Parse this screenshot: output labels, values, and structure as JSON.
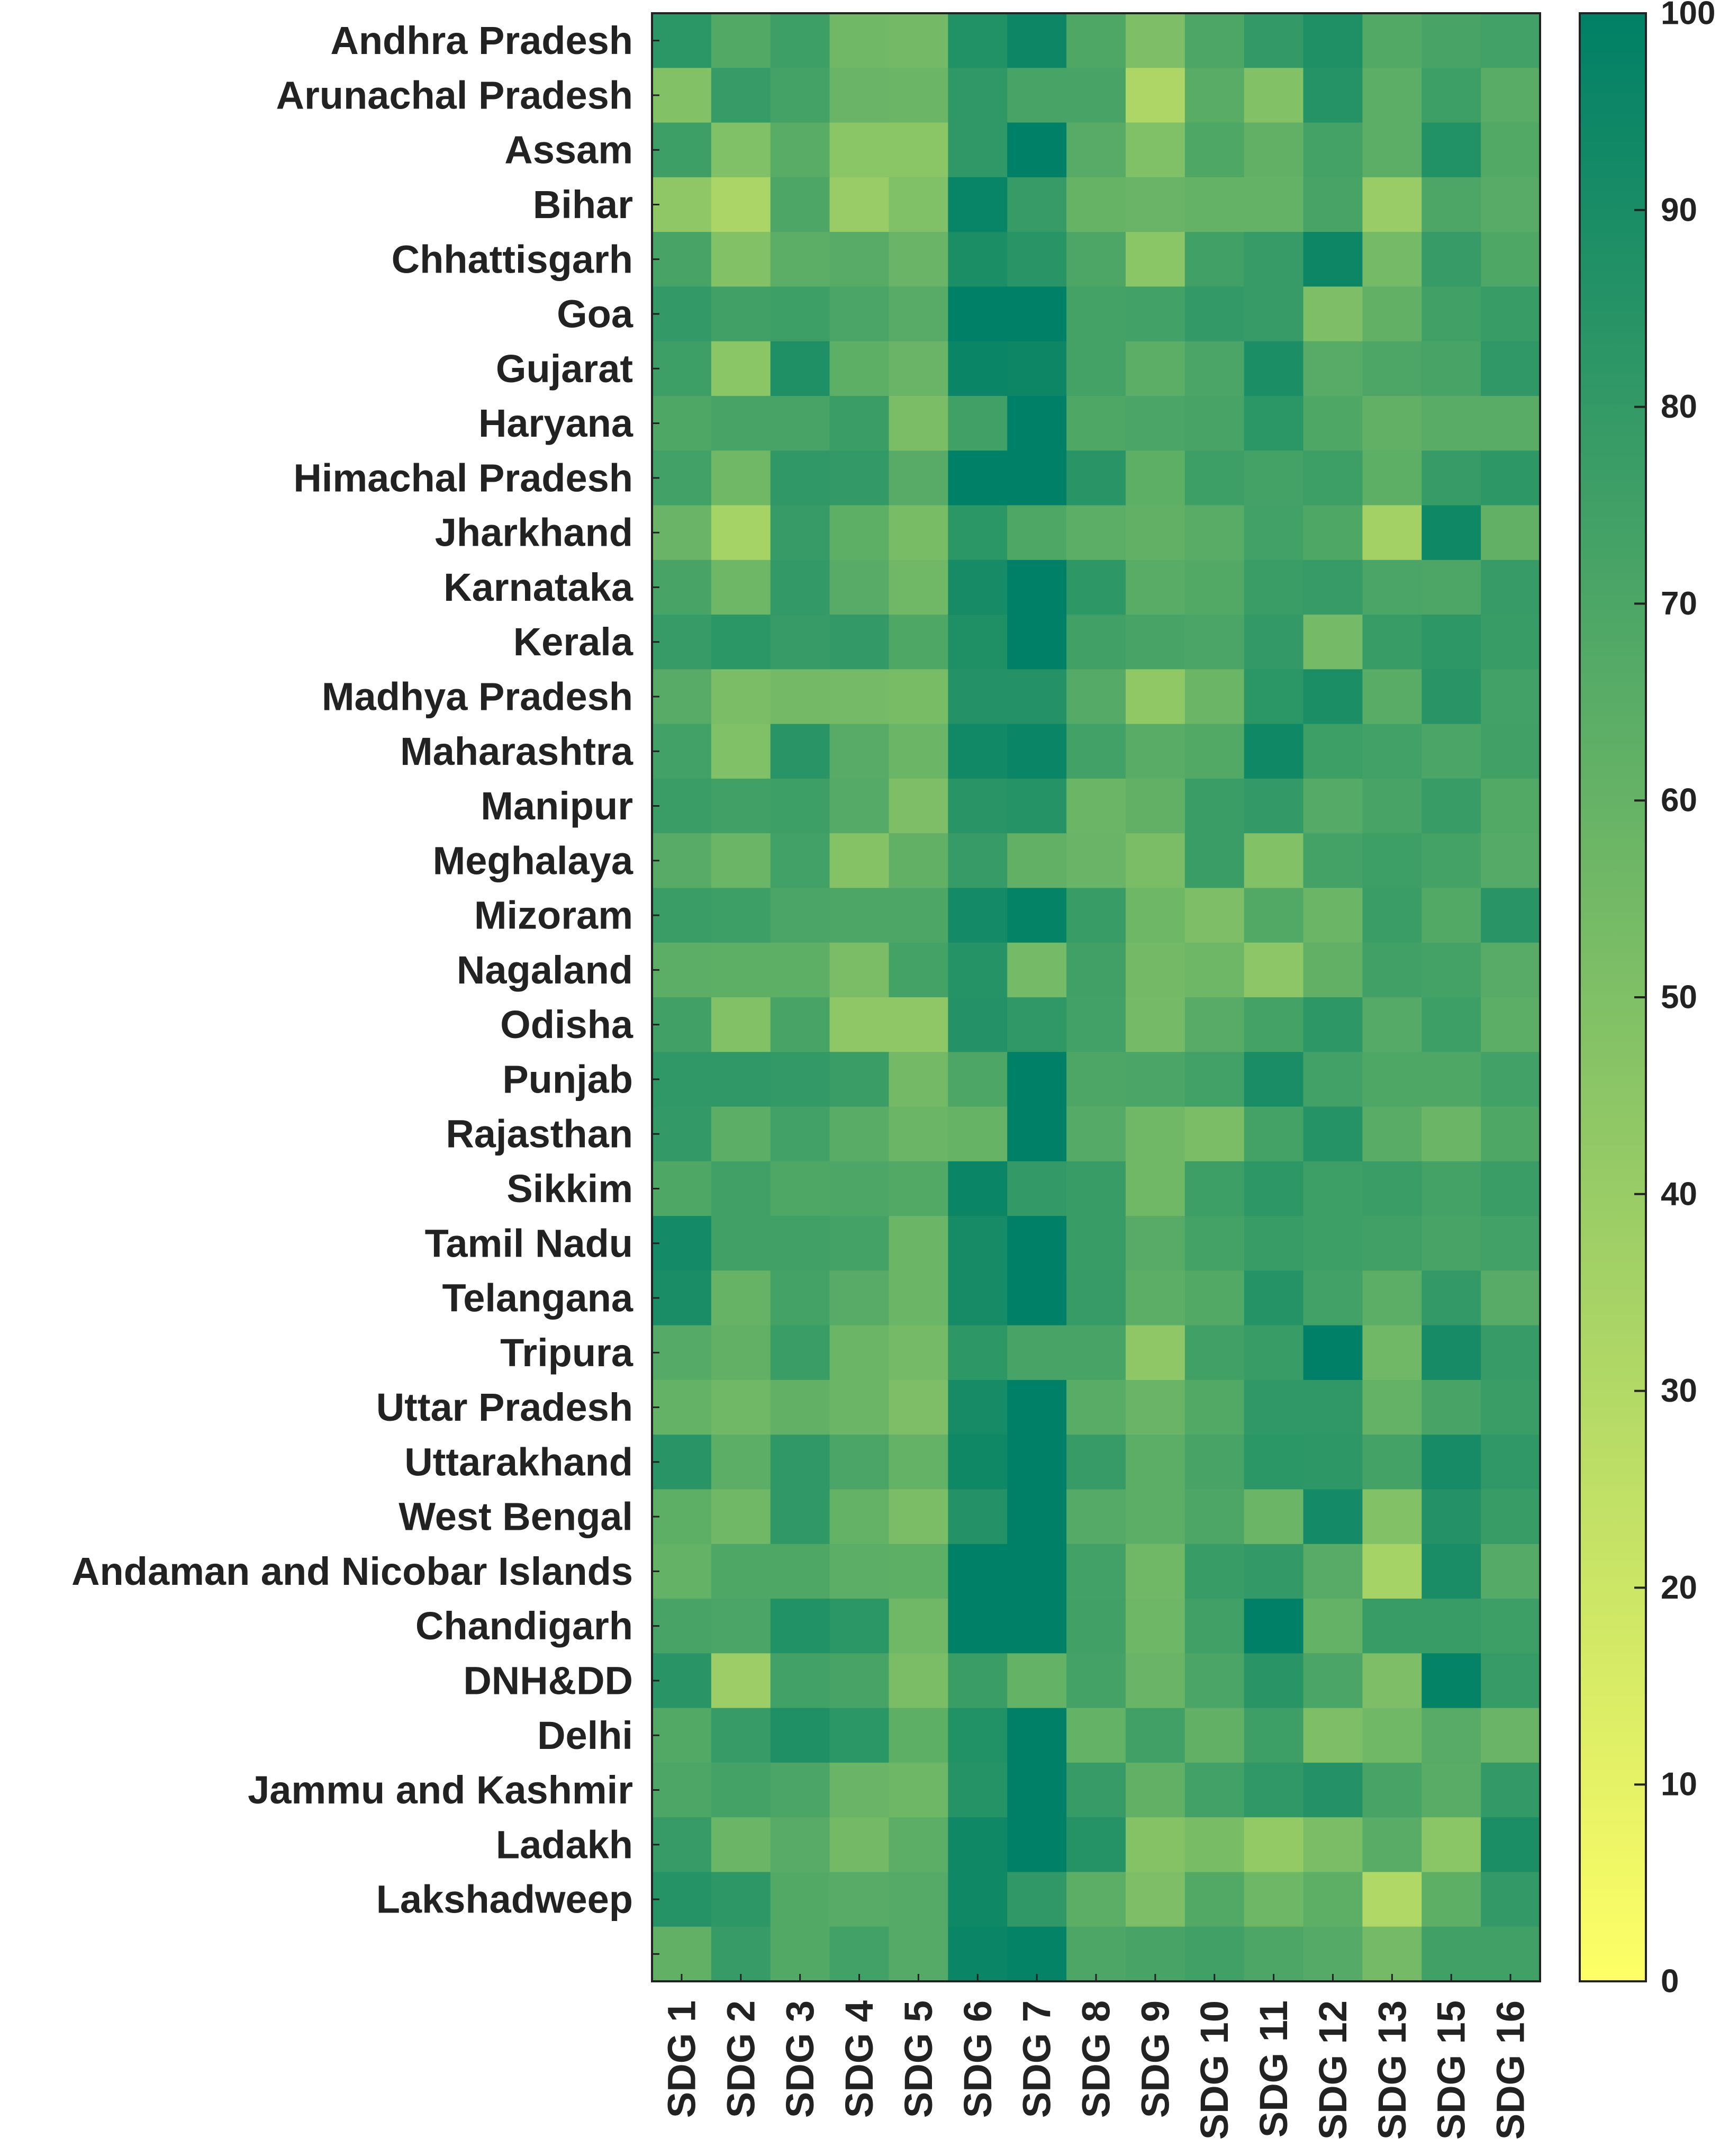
{
  "chart_data": {
    "type": "heatmap",
    "title": "",
    "xlabel": "",
    "ylabel": "",
    "colormap": {
      "name": "summer",
      "low_color": "#ffff66",
      "high_color": "#008066",
      "range": [
        0,
        100
      ]
    },
    "colorbar": {
      "ticks": [
        "0",
        "10",
        "20",
        "30",
        "40",
        "50",
        "60",
        "70",
        "80",
        "90",
        "100"
      ],
      "tick_values": [
        0,
        10,
        20,
        30,
        40,
        50,
        60,
        70,
        80,
        90,
        100
      ]
    },
    "columns": [
      "SDG 1",
      "SDG 2",
      "SDG 3",
      "SDG 4",
      "SDG 5",
      "SDG 6",
      "SDG 7",
      "SDG 8",
      "SDG 9",
      "SDG 10",
      "SDG 11",
      "SDG 12",
      "SDG 13",
      "SDG 15",
      "SDG 16"
    ],
    "rows": [
      "Andhra Pradesh",
      "Arunachal Pradesh",
      "Assam",
      "Bihar",
      "Chhattisgarh",
      "Goa",
      "Gujarat",
      "Haryana",
      "Himachal Pradesh",
      "Jharkhand",
      "Karnataka",
      "Kerala",
      "Madhya Pradesh",
      "Maharashtra",
      "Manipur",
      "Meghalaya",
      "Mizoram",
      "Nagaland",
      "Odisha",
      "Punjab",
      "Rajasthan",
      "Sikkim",
      "Tamil Nadu",
      "Telangana",
      "Tripura",
      "Uttar Pradesh",
      "Uttarakhand",
      "West Bengal",
      "Andaman and Nicobar Islands",
      "Chandigarh",
      "DNH&DD",
      "Delhi",
      "Jammu and Kashmir",
      "Ladakh",
      "Lakshadweep",
      ""
    ],
    "values": [
      [
        83,
        68,
        76,
        56,
        55,
        87,
        95,
        69,
        51,
        70,
        80,
        88,
        68,
        72,
        74
      ],
      [
        49,
        79,
        73,
        59,
        58,
        81,
        72,
        72,
        32,
        65,
        49,
        85,
        64,
        76,
        65
      ],
      [
        76,
        50,
        65,
        46,
        46,
        81,
        100,
        66,
        50,
        69,
        62,
        73,
        64,
        87,
        68
      ],
      [
        44,
        33,
        70,
        40,
        50,
        97,
        79,
        60,
        59,
        61,
        61,
        72,
        40,
        70,
        66
      ],
      [
        72,
        49,
        64,
        66,
        59,
        89,
        84,
        70,
        46,
        75,
        79,
        95,
        54,
        79,
        69
      ],
      [
        80,
        75,
        76,
        71,
        66,
        100,
        100,
        73,
        74,
        80,
        79,
        51,
        62,
        75,
        78
      ],
      [
        76,
        46,
        88,
        63,
        59,
        96,
        95,
        73,
        64,
        71,
        89,
        66,
        70,
        72,
        81
      ],
      [
        69,
        72,
        72,
        77,
        52,
        75,
        100,
        69,
        71,
        72,
        83,
        69,
        62,
        65,
        65
      ],
      [
        74,
        56,
        81,
        80,
        66,
        100,
        100,
        84,
        63,
        76,
        73,
        76,
        63,
        79,
        82
      ],
      [
        59,
        35,
        79,
        63,
        53,
        83,
        69,
        64,
        62,
        65,
        74,
        69,
        36,
        94,
        62
      ],
      [
        72,
        57,
        80,
        66,
        56,
        91,
        100,
        82,
        65,
        68,
        77,
        79,
        71,
        70,
        79
      ],
      [
        79,
        83,
        79,
        80,
        69,
        88,
        100,
        75,
        72,
        71,
        80,
        54,
        78,
        82,
        78
      ],
      [
        66,
        52,
        55,
        54,
        53,
        86,
        86,
        67,
        43,
        58,
        83,
        89,
        65,
        84,
        74
      ],
      [
        74,
        50,
        84,
        66,
        58,
        93,
        96,
        74,
        65,
        68,
        94,
        76,
        74,
        71,
        75
      ],
      [
        77,
        75,
        76,
        67,
        51,
        84,
        85,
        58,
        62,
        77,
        80,
        67,
        72,
        78,
        68
      ],
      [
        66,
        58,
        74,
        48,
        62,
        79,
        62,
        59,
        52,
        77,
        49,
        73,
        76,
        73,
        67
      ],
      [
        77,
        76,
        71,
        70,
        70,
        92,
        98,
        78,
        57,
        51,
        68,
        58,
        77,
        68,
        84
      ],
      [
        64,
        63,
        63,
        52,
        73,
        85,
        54,
        75,
        55,
        57,
        45,
        62,
        75,
        73,
        66
      ],
      [
        75,
        49,
        72,
        44,
        44,
        86,
        81,
        74,
        54,
        66,
        73,
        82,
        67,
        76,
        64
      ],
      [
        81,
        81,
        80,
        77,
        55,
        70,
        100,
        70,
        71,
        74,
        90,
        74,
        69,
        69,
        74
      ],
      [
        80,
        64,
        74,
        65,
        58,
        60,
        100,
        67,
        56,
        52,
        73,
        85,
        65,
        58,
        69
      ],
      [
        69,
        75,
        69,
        70,
        68,
        96,
        80,
        78,
        56,
        76,
        82,
        76,
        77,
        73,
        77
      ],
      [
        92,
        75,
        75,
        73,
        58,
        91,
        100,
        78,
        66,
        73,
        78,
        76,
        75,
        72,
        74
      ],
      [
        90,
        60,
        73,
        66,
        58,
        91,
        100,
        79,
        64,
        68,
        85,
        74,
        64,
        80,
        66
      ],
      [
        67,
        62,
        77,
        58,
        54,
        82,
        72,
        72,
        44,
        75,
        78,
        100,
        56,
        91,
        79
      ],
      [
        61,
        56,
        62,
        58,
        51,
        91,
        100,
        65,
        59,
        68,
        81,
        81,
        61,
        72,
        77
      ],
      [
        84,
        64,
        81,
        71,
        61,
        94,
        100,
        79,
        64,
        72,
        83,
        82,
        73,
        91,
        81
      ],
      [
        63,
        56,
        81,
        61,
        52,
        86,
        100,
        67,
        64,
        70,
        58,
        92,
        49,
        86,
        78
      ],
      [
        61,
        69,
        69,
        64,
        63,
        100,
        100,
        74,
        56,
        78,
        80,
        66,
        35,
        90,
        67
      ],
      [
        72,
        71,
        87,
        83,
        56,
        100,
        100,
        75,
        57,
        75,
        100,
        61,
        78,
        78,
        76
      ],
      [
        84,
        39,
        74,
        72,
        52,
        77,
        61,
        73,
        59,
        71,
        84,
        71,
        51,
        98,
        79
      ],
      [
        68,
        79,
        88,
        83,
        63,
        87,
        100,
        61,
        75,
        62,
        76,
        51,
        56,
        66,
        59
      ],
      [
        70,
        73,
        71,
        59,
        57,
        85,
        100,
        79,
        62,
        74,
        81,
        86,
        72,
        65,
        80
      ],
      [
        79,
        58,
        66,
        55,
        64,
        94,
        100,
        85,
        48,
        53,
        42,
        52,
        65,
        46,
        89
      ],
      [
        85,
        82,
        68,
        66,
        67,
        94,
        81,
        64,
        51,
        68,
        57,
        63,
        31,
        63,
        80
      ],
      [
        62,
        79,
        68,
        74,
        67,
        96,
        98,
        70,
        72,
        75,
        70,
        67,
        54,
        75,
        75
      ]
    ]
  }
}
